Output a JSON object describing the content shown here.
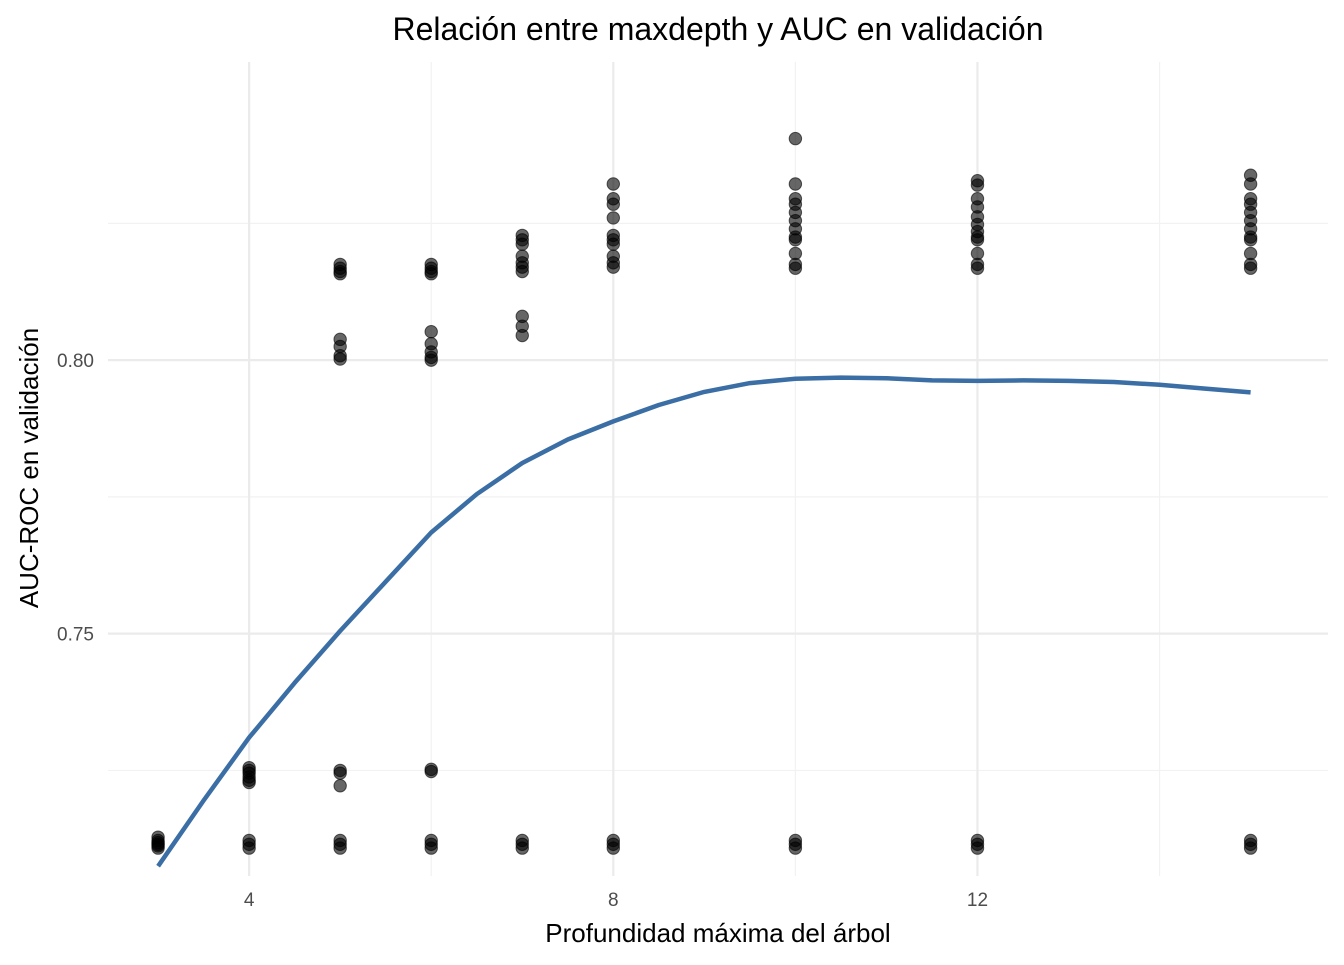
{
  "chart_data": {
    "type": "scatter",
    "title": "Relación entre maxdepth y AUC en validación",
    "xlabel": "Profundidad máxima del árbol",
    "ylabel": "AUC-ROC en validación",
    "xlim": [
      2.45,
      15.85
    ],
    "ylim": [
      0.7057,
      0.8545
    ],
    "x_ticks": [
      4,
      8,
      12
    ],
    "x_tick_labels": [
      "4",
      "8",
      "12"
    ],
    "x_minor_ticks": [
      6,
      10,
      14
    ],
    "y_ticks": [
      0.75,
      0.8
    ],
    "y_tick_labels": [
      "0.75",
      "0.80"
    ],
    "y_minor_ticks": [
      0.725,
      0.775,
      0.825
    ],
    "grid": true,
    "point_color": "#000000",
    "point_opacity": 0.6,
    "line_color": "#3a6ea5",
    "series": [
      {
        "type": "scatter",
        "points": [
          [
            3,
            0.7128
          ],
          [
            3,
            0.7122
          ],
          [
            3,
            0.7118
          ],
          [
            3,
            0.7115
          ],
          [
            3,
            0.7112
          ],
          [
            3,
            0.7108
          ],
          [
            4,
            0.7255
          ],
          [
            4,
            0.725
          ],
          [
            4,
            0.7245
          ],
          [
            4,
            0.7238
          ],
          [
            4,
            0.7232
          ],
          [
            4,
            0.7228
          ],
          [
            4,
            0.7122
          ],
          [
            4,
            0.7115
          ],
          [
            4,
            0.7108
          ],
          [
            5,
            0.8175
          ],
          [
            5,
            0.8168
          ],
          [
            5,
            0.8162
          ],
          [
            5,
            0.8158
          ],
          [
            5,
            0.8038
          ],
          [
            5,
            0.8025
          ],
          [
            5,
            0.8008
          ],
          [
            5,
            0.8002
          ],
          [
            5,
            0.725
          ],
          [
            5,
            0.7245
          ],
          [
            5,
            0.7222
          ],
          [
            5,
            0.7122
          ],
          [
            5,
            0.7115
          ],
          [
            5,
            0.7108
          ],
          [
            6,
            0.8175
          ],
          [
            6,
            0.8168
          ],
          [
            6,
            0.8162
          ],
          [
            6,
            0.8158
          ],
          [
            6,
            0.8052
          ],
          [
            6,
            0.803
          ],
          [
            6,
            0.8015
          ],
          [
            6,
            0.8005
          ],
          [
            6,
            0.8
          ],
          [
            6,
            0.7252
          ],
          [
            6,
            0.7248
          ],
          [
            6,
            0.7122
          ],
          [
            6,
            0.7115
          ],
          [
            6,
            0.7108
          ],
          [
            7,
            0.8228
          ],
          [
            7,
            0.822
          ],
          [
            7,
            0.8212
          ],
          [
            7,
            0.819
          ],
          [
            7,
            0.8178
          ],
          [
            7,
            0.817
          ],
          [
            7,
            0.8162
          ],
          [
            7,
            0.808
          ],
          [
            7,
            0.8062
          ],
          [
            7,
            0.8045
          ],
          [
            7,
            0.7122
          ],
          [
            7,
            0.7115
          ],
          [
            7,
            0.7108
          ],
          [
            8,
            0.8322
          ],
          [
            8,
            0.8295
          ],
          [
            8,
            0.8285
          ],
          [
            8,
            0.826
          ],
          [
            8,
            0.8228
          ],
          [
            8,
            0.822
          ],
          [
            8,
            0.8212
          ],
          [
            8,
            0.819
          ],
          [
            8,
            0.8178
          ],
          [
            8,
            0.817
          ],
          [
            8,
            0.7122
          ],
          [
            8,
            0.7115
          ],
          [
            8,
            0.7108
          ],
          [
            10,
            0.8405
          ],
          [
            10,
            0.8322
          ],
          [
            10,
            0.8295
          ],
          [
            10,
            0.8285
          ],
          [
            10,
            0.827
          ],
          [
            10,
            0.8255
          ],
          [
            10,
            0.824
          ],
          [
            10,
            0.8225
          ],
          [
            10,
            0.822
          ],
          [
            10,
            0.8195
          ],
          [
            10,
            0.8175
          ],
          [
            10,
            0.8168
          ],
          [
            10,
            0.7122
          ],
          [
            10,
            0.7115
          ],
          [
            10,
            0.7108
          ],
          [
            12,
            0.8328
          ],
          [
            12,
            0.832
          ],
          [
            12,
            0.8295
          ],
          [
            12,
            0.828
          ],
          [
            12,
            0.8262
          ],
          [
            12,
            0.8248
          ],
          [
            12,
            0.8235
          ],
          [
            12,
            0.8225
          ],
          [
            12,
            0.822
          ],
          [
            12,
            0.8195
          ],
          [
            12,
            0.8175
          ],
          [
            12,
            0.8168
          ],
          [
            12,
            0.7122
          ],
          [
            12,
            0.7115
          ],
          [
            12,
            0.7108
          ],
          [
            15,
            0.8338
          ],
          [
            15,
            0.8322
          ],
          [
            15,
            0.8295
          ],
          [
            15,
            0.8285
          ],
          [
            15,
            0.827
          ],
          [
            15,
            0.8255
          ],
          [
            15,
            0.824
          ],
          [
            15,
            0.8225
          ],
          [
            15,
            0.822
          ],
          [
            15,
            0.8195
          ],
          [
            15,
            0.8175
          ],
          [
            15,
            0.8168
          ],
          [
            15,
            0.7122
          ],
          [
            15,
            0.7115
          ],
          [
            15,
            0.7108
          ]
        ]
      },
      {
        "type": "line",
        "points": [
          [
            3,
            0.7075
          ],
          [
            3.5,
            0.7195
          ],
          [
            4,
            0.731
          ],
          [
            4.5,
            0.741
          ],
          [
            5,
            0.7505
          ],
          [
            5.5,
            0.7595
          ],
          [
            6,
            0.7685
          ],
          [
            6.5,
            0.7755
          ],
          [
            7,
            0.7812
          ],
          [
            7.5,
            0.7855
          ],
          [
            8,
            0.7888
          ],
          [
            8.5,
            0.7918
          ],
          [
            9,
            0.7942
          ],
          [
            9.5,
            0.7958
          ],
          [
            10,
            0.7966
          ],
          [
            10.5,
            0.7968
          ],
          [
            11,
            0.7967
          ],
          [
            11.5,
            0.7963
          ],
          [
            12,
            0.7962
          ],
          [
            12.5,
            0.7963
          ],
          [
            13,
            0.7962
          ],
          [
            13.5,
            0.796
          ],
          [
            14,
            0.7955
          ],
          [
            14.5,
            0.7948
          ],
          [
            15,
            0.7941
          ]
        ]
      }
    ]
  }
}
